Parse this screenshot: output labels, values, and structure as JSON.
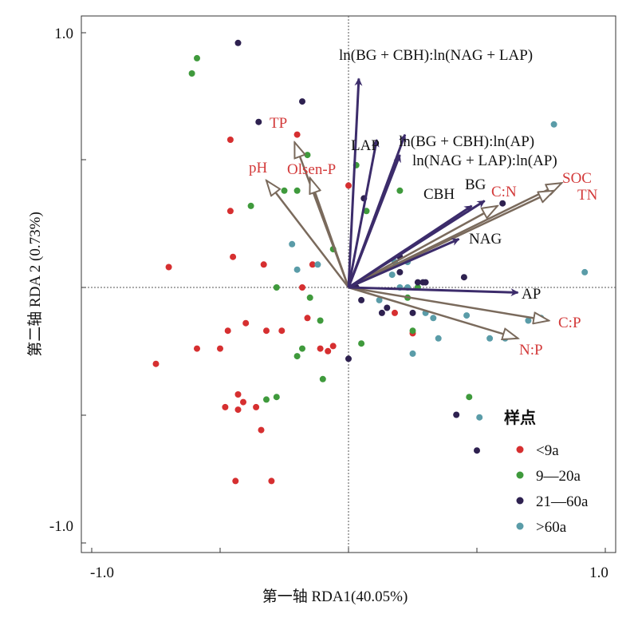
{
  "chart_data": {
    "type": "scatter",
    "xlabel": "第一轴 RDA1(40.05%)",
    "ylabel": "第二轴 RDA 2 (0.73%)",
    "xlim": [
      -1.0,
      1.0
    ],
    "ylim": [
      -1.0,
      1.0
    ],
    "x_ticks": [
      "-1.0",
      "1.0"
    ],
    "y_ticks": [
      "1.0",
      "-1.0"
    ],
    "grid": "dotted zero lines",
    "legend": {
      "title": "样点",
      "placement": "bottom-right",
      "entries": [
        {
          "label": "<9a",
          "color": "#d62f30"
        },
        {
          "label": "9—20a",
          "color": "#3f9a3c"
        },
        {
          "label": "21—60a",
          "color": "#2e2150"
        },
        {
          "label": ">60a",
          "color": "#5a9ca8"
        }
      ]
    },
    "colors": {
      "enzyme_arrow": "#3c2c6b",
      "soil_arrow": "#7a6a5c",
      "enzyme_text": "#111111",
      "soil_text": "#d33a3a"
    },
    "series": [
      {
        "name": "<9a",
        "color": "#d62f30",
        "points": [
          [
            -0.46,
            0.58
          ],
          [
            -0.46,
            0.3
          ],
          [
            -0.7,
            0.08
          ],
          [
            -0.45,
            0.12
          ],
          [
            -0.33,
            0.09
          ],
          [
            -0.14,
            0.09
          ],
          [
            -0.18,
            0.0
          ],
          [
            -0.47,
            -0.17
          ],
          [
            -0.4,
            -0.14
          ],
          [
            -0.16,
            -0.12
          ],
          [
            -0.32,
            -0.17
          ],
          [
            -0.26,
            -0.17
          ],
          [
            -0.11,
            -0.24
          ],
          [
            -0.08,
            -0.25
          ],
          [
            -0.06,
            -0.23
          ],
          [
            -0.59,
            -0.24
          ],
          [
            -0.5,
            -0.24
          ],
          [
            -0.75,
            -0.3
          ],
          [
            -0.43,
            -0.42
          ],
          [
            -0.41,
            -0.45
          ],
          [
            -0.36,
            -0.47
          ],
          [
            -0.43,
            -0.48
          ],
          [
            -0.48,
            -0.47
          ],
          [
            -0.34,
            -0.56
          ],
          [
            -0.44,
            -0.76
          ],
          [
            -0.3,
            -0.76
          ],
          [
            -0.2,
            0.6
          ],
          [
            0.18,
            -0.1
          ],
          [
            0.25,
            -0.18
          ],
          [
            0.0,
            0.4
          ]
        ]
      },
      {
        "name": "9—20a",
        "color": "#3f9a3c",
        "points": [
          [
            -0.59,
            0.9
          ],
          [
            -0.61,
            0.84
          ],
          [
            -0.16,
            0.52
          ],
          [
            -0.25,
            0.38
          ],
          [
            -0.2,
            0.38
          ],
          [
            -0.38,
            0.32
          ],
          [
            -0.06,
            0.15
          ],
          [
            -0.28,
            0.0
          ],
          [
            -0.15,
            -0.04
          ],
          [
            -0.11,
            -0.13
          ],
          [
            -0.18,
            -0.24
          ],
          [
            -0.2,
            -0.27
          ],
          [
            -0.1,
            -0.36
          ],
          [
            -0.28,
            -0.43
          ],
          [
            -0.32,
            -0.44
          ],
          [
            0.05,
            -0.22
          ],
          [
            0.27,
            0.0
          ],
          [
            0.23,
            -0.04
          ],
          [
            0.07,
            0.3
          ],
          [
            0.2,
            0.38
          ],
          [
            0.25,
            -0.17
          ],
          [
            0.47,
            -0.43
          ],
          [
            0.03,
            0.48
          ]
        ]
      },
      {
        "name": "21—60a",
        "color": "#2e2150",
        "points": [
          [
            -0.43,
            0.96
          ],
          [
            -0.35,
            0.65
          ],
          [
            -0.18,
            0.73
          ],
          [
            0.2,
            0.12
          ],
          [
            0.2,
            0.06
          ],
          [
            0.27,
            0.02
          ],
          [
            0.29,
            0.02
          ],
          [
            0.3,
            0.02
          ],
          [
            0.05,
            -0.05
          ],
          [
            0.03,
            0.0
          ],
          [
            0.45,
            0.04
          ],
          [
            0.6,
            0.33
          ],
          [
            0.42,
            -0.5
          ],
          [
            0.5,
            -0.64
          ],
          [
            0.13,
            -0.1
          ],
          [
            0.15,
            -0.08
          ],
          [
            0.25,
            -0.1
          ],
          [
            0.0,
            -0.28
          ],
          [
            0.06,
            0.35
          ]
        ]
      },
      {
        "name": ">60a",
        "color": "#5a9ca8",
        "points": [
          [
            0.8,
            0.64
          ],
          [
            0.92,
            0.06
          ],
          [
            -0.22,
            0.17
          ],
          [
            -0.12,
            0.09
          ],
          [
            -0.2,
            0.07
          ],
          [
            0.12,
            -0.05
          ],
          [
            0.17,
            0.05
          ],
          [
            0.23,
            0.0
          ],
          [
            0.18,
            0.1
          ],
          [
            0.23,
            0.1
          ],
          [
            0.2,
            0.0
          ],
          [
            0.3,
            -0.1
          ],
          [
            0.33,
            -0.12
          ],
          [
            0.46,
            -0.11
          ],
          [
            0.25,
            -0.26
          ],
          [
            0.35,
            -0.2
          ],
          [
            0.55,
            -0.2
          ],
          [
            0.51,
            -0.51
          ],
          [
            0.61,
            -0.2
          ],
          [
            0.75,
            -0.12
          ],
          [
            0.7,
            -0.13
          ]
        ]
      }
    ],
    "enzyme_vectors": [
      {
        "label": "ln(BG + CBH):ln(NAG + LAP)",
        "x": 0.04,
        "y": 0.82
      },
      {
        "label": "LAP",
        "x": 0.11,
        "y": 0.58
      },
      {
        "label": "ln(BG + CBH):ln(AP)",
        "x": 0.22,
        "y": 0.6
      },
      {
        "label": "ln(NAG + LAP):ln(AP)",
        "x": 0.2,
        "y": 0.52
      },
      {
        "label": "BG",
        "x": 0.53,
        "y": 0.34
      },
      {
        "label": "CBH",
        "x": 0.48,
        "y": 0.32
      },
      {
        "label": "NAG",
        "x": 0.43,
        "y": 0.19
      },
      {
        "label": "AP",
        "x": 0.66,
        "y": -0.02
      }
    ],
    "soil_vectors": [
      {
        "label": "TP",
        "x": -0.21,
        "y": 0.57
      },
      {
        "label": "pH",
        "x": -0.32,
        "y": 0.42
      },
      {
        "label": "Olsen-P",
        "x": -0.15,
        "y": 0.43
      },
      {
        "label": "C:N",
        "x": 0.58,
        "y": 0.32
      },
      {
        "label": "SOC",
        "x": 0.83,
        "y": 0.41
      },
      {
        "label": "TN",
        "x": 0.8,
        "y": 0.38
      },
      {
        "label": "C:P",
        "x": 0.78,
        "y": -0.13
      },
      {
        "label": "N:P",
        "x": 0.66,
        "y": -0.2
      }
    ]
  }
}
